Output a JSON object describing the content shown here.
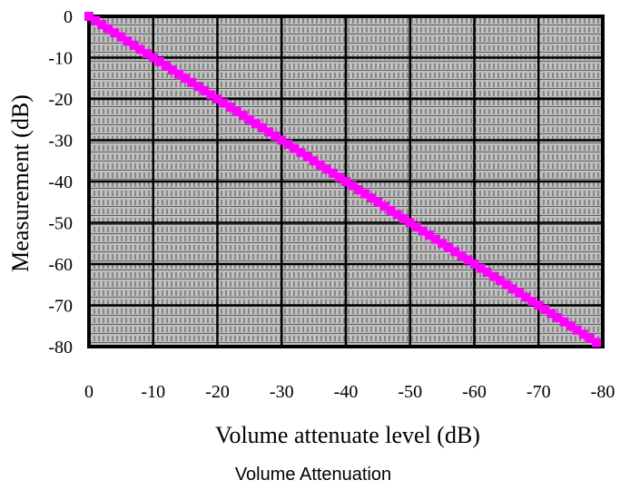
{
  "chart_data": {
    "type": "line",
    "title": "",
    "caption": "Volume Attenuation",
    "xlabel": "Volume attenuate level (dB)",
    "ylabel": "Measurement (dB)",
    "x_ticks": [
      "0",
      "-10",
      "-20",
      "-30",
      "-40",
      "-50",
      "-60",
      "-70",
      "-80"
    ],
    "y_ticks": [
      "0",
      "-10",
      "-20",
      "-30",
      "-40",
      "-50",
      "-60",
      "-70",
      "-80"
    ],
    "xlim": [
      0,
      -80
    ],
    "ylim": [
      -80,
      0
    ],
    "grid": true,
    "plot_background": "#c0c0c0",
    "series": [
      {
        "color": "#ff00ff",
        "marker": "square",
        "x": [
          0,
          -1,
          -2,
          -3,
          -4,
          -5,
          -6,
          -7,
          -8,
          -9,
          -10,
          -11,
          -12,
          -13,
          -14,
          -15,
          -16,
          -17,
          -18,
          -19,
          -20,
          -21,
          -22,
          -23,
          -24,
          -25,
          -26,
          -27,
          -28,
          -29,
          -30,
          -31,
          -32,
          -33,
          -34,
          -35,
          -36,
          -37,
          -38,
          -39,
          -40,
          -41,
          -42,
          -43,
          -44,
          -45,
          -46,
          -47,
          -48,
          -49,
          -50,
          -51,
          -52,
          -53,
          -54,
          -55,
          -56,
          -57,
          -58,
          -59,
          -60,
          -61,
          -62,
          -63,
          -64,
          -65,
          -66,
          -67,
          -68,
          -69,
          -70,
          -71,
          -72,
          -73,
          -74,
          -75,
          -76,
          -77,
          -78,
          -79
        ],
        "y": [
          0,
          -1,
          -2,
          -3,
          -4,
          -5,
          -6,
          -7,
          -8,
          -9,
          -10,
          -11,
          -12,
          -13,
          -14,
          -15,
          -16,
          -17,
          -18,
          -19,
          -20,
          -21,
          -22,
          -23,
          -24,
          -25,
          -26,
          -27,
          -28,
          -29,
          -30,
          -31,
          -32,
          -33,
          -34,
          -35,
          -36,
          -37,
          -38,
          -39,
          -40,
          -41,
          -42,
          -43,
          -44,
          -45,
          -46,
          -47,
          -48,
          -49,
          -50,
          -51,
          -52,
          -53,
          -54,
          -55,
          -56,
          -57,
          -58,
          -59,
          -60,
          -61,
          -62,
          -63,
          -64,
          -65,
          -66,
          -67,
          -68,
          -69,
          -70,
          -71,
          -72,
          -73,
          -74,
          -75,
          -76,
          -77,
          -78,
          -79
        ]
      }
    ]
  }
}
